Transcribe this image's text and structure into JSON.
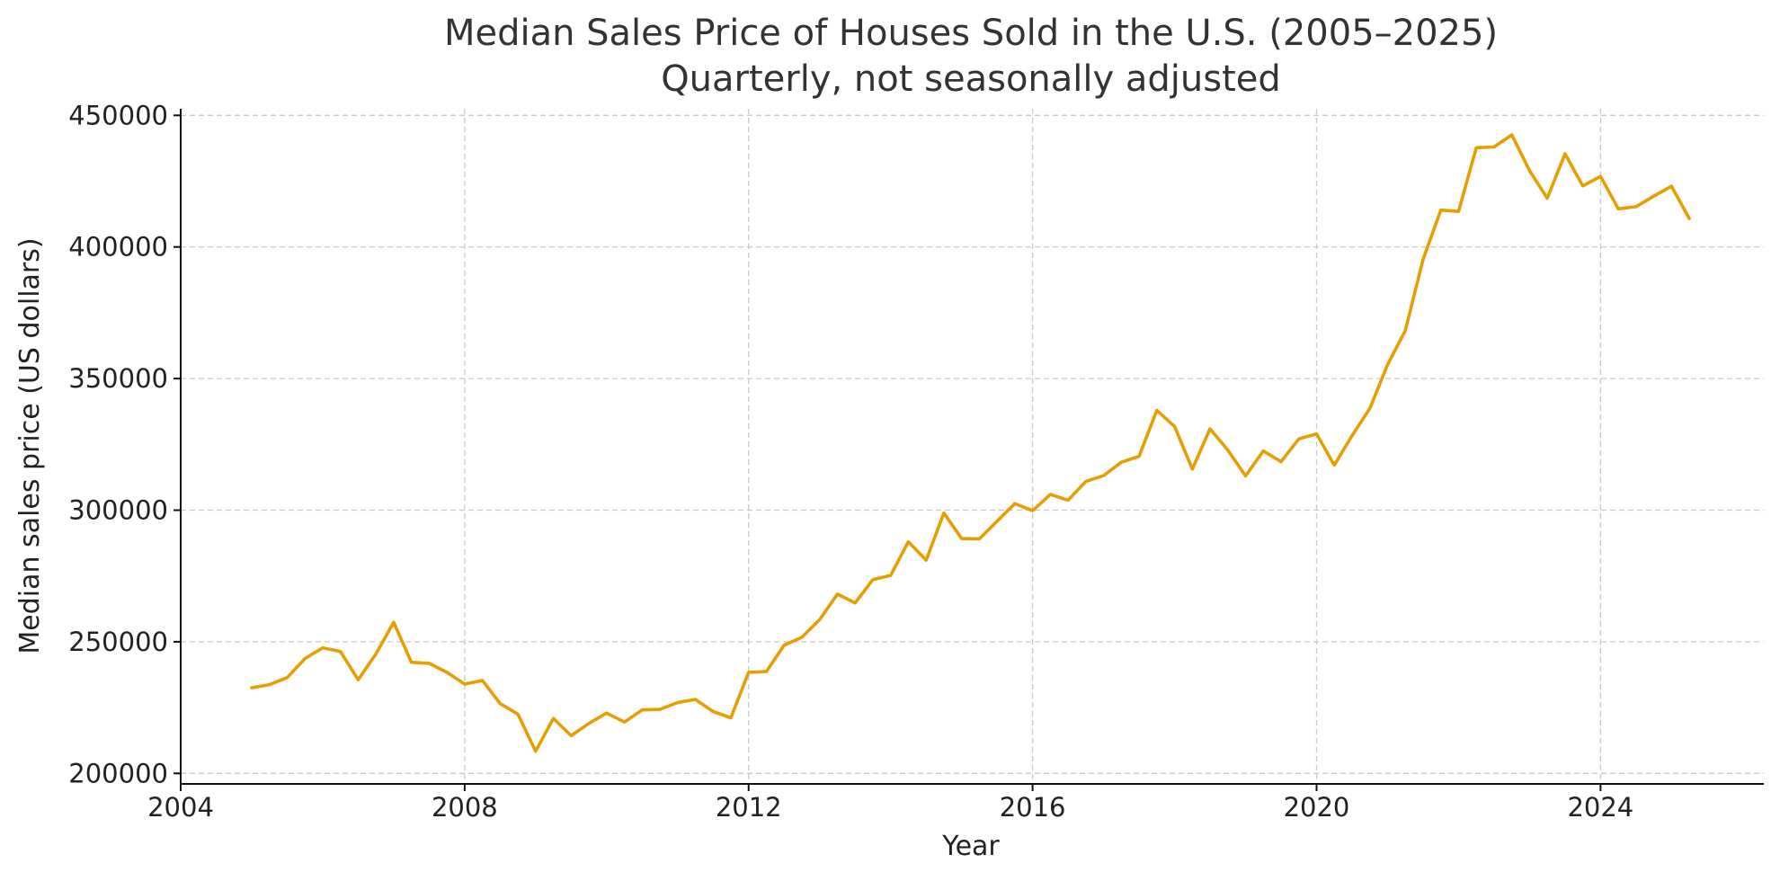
{
  "colors": {
    "series": "#E69F00",
    "grid": "#c8c8c8",
    "axis": "#111111",
    "title": "#333333"
  },
  "chart_data": {
    "type": "line",
    "title": "Median Sales Price of Houses Sold in the U.S. (2005–2025)",
    "subtitle": "Quarterly, not seasonally adjusted",
    "xlabel": "Year",
    "ylabel": "Median sales price (US dollars)",
    "xlim": [
      2004,
      2026.3
    ],
    "ylim": [
      196000,
      452500
    ],
    "x_ticks": [
      2004,
      2008,
      2012,
      2016,
      2020,
      2024
    ],
    "y_ticks": [
      200000,
      250000,
      300000,
      350000,
      400000,
      450000
    ],
    "grid": true,
    "series": [
      {
        "name": "Median sales price",
        "x": [
          2005,
          2005.25,
          2005.5,
          2005.75,
          2006,
          2006.25,
          2006.5,
          2006.75,
          2007,
          2007.25,
          2007.5,
          2007.75,
          2008,
          2008.25,
          2008.5,
          2008.75,
          2009,
          2009.25,
          2009.5,
          2009.75,
          2010,
          2010.25,
          2010.5,
          2010.75,
          2011,
          2011.25,
          2011.5,
          2011.75,
          2012,
          2012.25,
          2012.5,
          2012.75,
          2013,
          2013.25,
          2013.5,
          2013.75,
          2014,
          2014.25,
          2014.5,
          2014.75,
          2015,
          2015.25,
          2015.5,
          2015.75,
          2016,
          2016.25,
          2016.5,
          2016.75,
          2017,
          2017.25,
          2017.5,
          2017.75,
          2018,
          2018.25,
          2018.5,
          2018.75,
          2019,
          2019.25,
          2019.5,
          2019.75,
          2020,
          2020.25,
          2020.5,
          2020.75,
          2021,
          2021.25,
          2021.5,
          2021.75,
          2022,
          2022.25,
          2022.5,
          2022.75,
          2023,
          2023.25,
          2023.5,
          2023.75,
          2024,
          2024.25,
          2024.5,
          2024.75,
          2025,
          2025.25
        ],
        "values": [
          232500,
          233700,
          236400,
          243600,
          247700,
          246300,
          235600,
          245400,
          257400,
          242200,
          241800,
          238400,
          233900,
          235300,
          226500,
          222500,
          208400,
          220900,
          214300,
          219000,
          222900,
          219500,
          224100,
          224300,
          226900,
          228100,
          223500,
          221100,
          238400,
          238700,
          248700,
          251700,
          258400,
          268100,
          264800,
          273600,
          275200,
          288000,
          281000,
          298900,
          289200,
          289100,
          295800,
          302500,
          299800,
          306000,
          303800,
          310900,
          313100,
          318200,
          320500,
          337900,
          331800,
          315600,
          330900,
          322800,
          313000,
          322500,
          318400,
          327100,
          329000,
          317100,
          328300,
          338600,
          355300,
          368200,
          395300,
          414000,
          413500,
          437700,
          438000,
          442600,
          429000,
          418500,
          435400,
          423200,
          426800,
          414500,
          415300,
          419300,
          423100,
          410800
        ]
      }
    ]
  }
}
